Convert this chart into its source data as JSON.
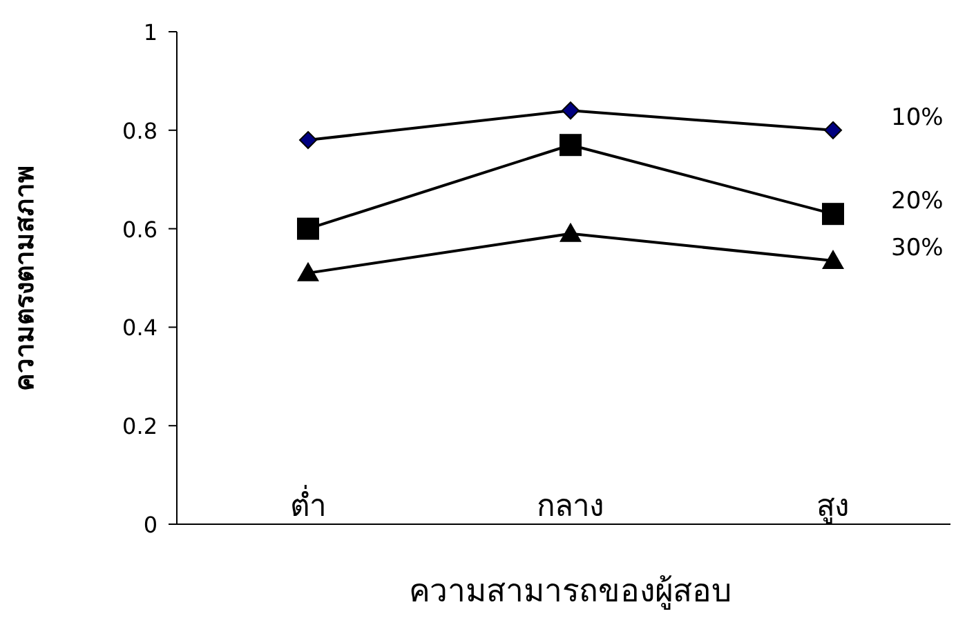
{
  "chart_data": {
    "type": "line",
    "xlabel": "ความสามารถของผู้สอบ",
    "ylabel": "ความตรงตามสภาพ",
    "categories": [
      "ต่ำ",
      "กลาง",
      "สูง"
    ],
    "series": [
      {
        "name": "10%",
        "color": "#000000",
        "marker": "diamond",
        "values": [
          0.78,
          0.84,
          0.8
        ]
      },
      {
        "name": "20%",
        "color": "#000000",
        "marker": "square",
        "values": [
          0.6,
          0.77,
          0.63
        ]
      },
      {
        "name": "30%",
        "color": "#000000",
        "marker": "triangle",
        "values": [
          0.51,
          0.59,
          0.535
        ]
      }
    ],
    "ylim": [
      0,
      1
    ],
    "yticks": [
      0,
      0.2,
      0.4,
      0.6,
      0.8,
      1
    ],
    "grid": false
  }
}
